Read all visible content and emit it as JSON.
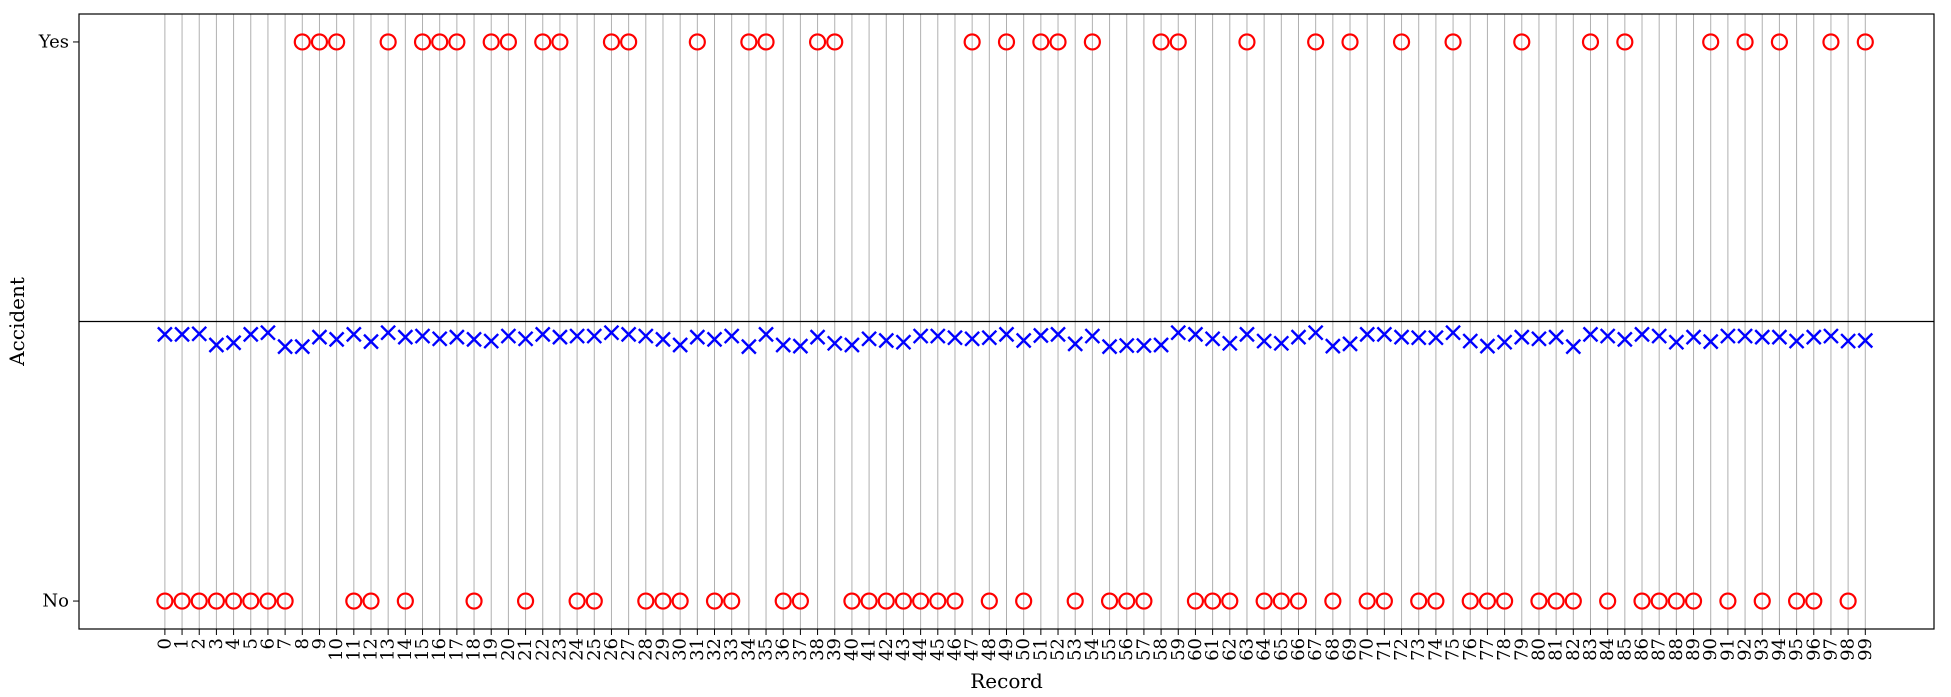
{
  "chart_data": {
    "type": "scatter",
    "xlabel": "Record",
    "ylabel": "Accident",
    "ytick_labels": [
      "Yes",
      "No"
    ],
    "x": [
      0,
      1,
      2,
      3,
      4,
      5,
      6,
      7,
      8,
      9,
      10,
      11,
      12,
      13,
      14,
      15,
      16,
      17,
      18,
      19,
      20,
      21,
      22,
      23,
      24,
      25,
      26,
      27,
      28,
      29,
      30,
      31,
      32,
      33,
      34,
      35,
      36,
      37,
      38,
      39,
      40,
      41,
      42,
      43,
      44,
      45,
      46,
      47,
      48,
      49,
      50,
      51,
      52,
      53,
      54,
      55,
      56,
      57,
      58,
      59,
      60,
      61,
      62,
      63,
      64,
      65,
      66,
      67,
      68,
      69,
      70,
      71,
      72,
      73,
      74,
      75,
      76,
      77,
      78,
      79,
      80,
      81,
      82,
      83,
      84,
      85,
      86,
      87,
      88,
      89,
      90,
      91,
      92,
      93,
      94,
      95,
      96,
      97,
      98,
      99
    ],
    "xlim": [
      -5,
      103
    ],
    "ylim": [
      -0.05,
      1.05
    ],
    "grid": "vertical",
    "series": [
      {
        "marker": "circle",
        "color": "#ff0000",
        "values": [
          0,
          0,
          0,
          0,
          0,
          0,
          0,
          0,
          1,
          1,
          1,
          0,
          0,
          1,
          0,
          1,
          1,
          1,
          0,
          1,
          1,
          0,
          1,
          1,
          0,
          0,
          1,
          1,
          0,
          0,
          0,
          1,
          0,
          0,
          1,
          1,
          0,
          0,
          1,
          1,
          0,
          0,
          0,
          0,
          0,
          0,
          0,
          1,
          0,
          1,
          0,
          1,
          1,
          0,
          1,
          0,
          0,
          0,
          1,
          1,
          0,
          0,
          0,
          1,
          0,
          0,
          0,
          1,
          0,
          1,
          0,
          0,
          1,
          0,
          0,
          1,
          0,
          0,
          0,
          1,
          0,
          0,
          0,
          1,
          0,
          1,
          0,
          0,
          0,
          0,
          1,
          0,
          1,
          0,
          1,
          0,
          0,
          1,
          0,
          1
        ]
      },
      {
        "marker": "x",
        "color": "#0000ff",
        "values": [
          0.477,
          0.477,
          0.478,
          0.458,
          0.462,
          0.477,
          0.48,
          0.455,
          0.455,
          0.472,
          0.468,
          0.477,
          0.464,
          0.48,
          0.472,
          0.474,
          0.469,
          0.472,
          0.468,
          0.465,
          0.474,
          0.469,
          0.477,
          0.472,
          0.474,
          0.474,
          0.48,
          0.477,
          0.474,
          0.468,
          0.458,
          0.472,
          0.468,
          0.474,
          0.455,
          0.477,
          0.458,
          0.456,
          0.472,
          0.461,
          0.458,
          0.469,
          0.466,
          0.463,
          0.474,
          0.474,
          0.471,
          0.469,
          0.471,
          0.477,
          0.466,
          0.475,
          0.477,
          0.46,
          0.474,
          0.455,
          0.457,
          0.457,
          0.458,
          0.48,
          0.477,
          0.469,
          0.461,
          0.477,
          0.465,
          0.461,
          0.472,
          0.48,
          0.456,
          0.46,
          0.477,
          0.477,
          0.472,
          0.471,
          0.471,
          0.48,
          0.465,
          0.456,
          0.463,
          0.472,
          0.469,
          0.472,
          0.455,
          0.477,
          0.474,
          0.468,
          0.477,
          0.474,
          0.463,
          0.472,
          0.464,
          0.474,
          0.474,
          0.472,
          0.472,
          0.465,
          0.472,
          0.474,
          0.465,
          0.466
        ]
      }
    ]
  }
}
